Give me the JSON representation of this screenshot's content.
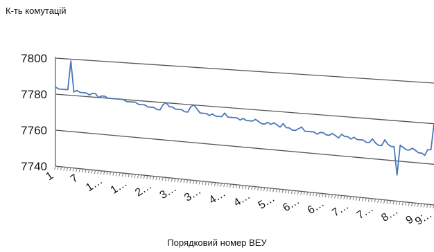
{
  "chart_data": {
    "type": "line",
    "ylabel": "К-ть комутацій",
    "xlabel": "Порядковий номер ВЕУ",
    "ylim": [
      7740,
      7800
    ],
    "y_ticks": [
      "7800",
      "7780",
      "7760",
      "7740"
    ],
    "x_tick_labels": [
      "1",
      "7",
      "1…",
      "1…",
      "2…",
      "3…",
      "3…",
      "4…",
      "4…",
      "5…",
      "6…",
      "6…",
      "7…",
      "7…",
      "8…",
      "9…",
      "9…"
    ],
    "grid": true,
    "colors": {
      "line": "#4a76b8",
      "grid": "#555555"
    },
    "series": [
      {
        "values": [
          7784,
          7783,
          7783,
          7783,
          7783,
          7799,
          7782,
          7783,
          7782,
          7782,
          7782,
          7781,
          7782,
          7782,
          7780,
          7781,
          7781,
          7780,
          7780,
          7780,
          7780,
          7780,
          7780,
          7779,
          7779,
          7779,
          7779,
          7778,
          7778,
          7778,
          7777,
          7777,
          7777,
          7776,
          7776,
          7779,
          7780,
          7778,
          7778,
          7777,
          7777,
          7777,
          7776,
          7776,
          7779,
          7780,
          7778,
          7776,
          7776,
          7776,
          7775,
          7776,
          7775,
          7775,
          7775,
          7777,
          7775,
          7775,
          7775,
          7775,
          7774,
          7775,
          7774,
          7774,
          7774,
          7775,
          7774,
          7773,
          7773,
          7774,
          7773,
          7774,
          7773,
          7772,
          7774,
          7772,
          7772,
          7771,
          7771,
          7772,
          7773,
          7771,
          7771,
          7771,
          7771,
          7770,
          7771,
          7771,
          7770,
          7770,
          7771,
          7770,
          7769,
          7771,
          7770,
          7770,
          7769,
          7770,
          7769,
          7769,
          7769,
          7768,
          7768,
          7770,
          7768,
          7767,
          7767,
          7770,
          7768,
          7767,
          7767,
          7753,
          7768,
          7767,
          7766,
          7766,
          7767,
          7766,
          7765,
          7765,
          7764,
          7767,
          7767,
          7780
        ]
      }
    ]
  }
}
